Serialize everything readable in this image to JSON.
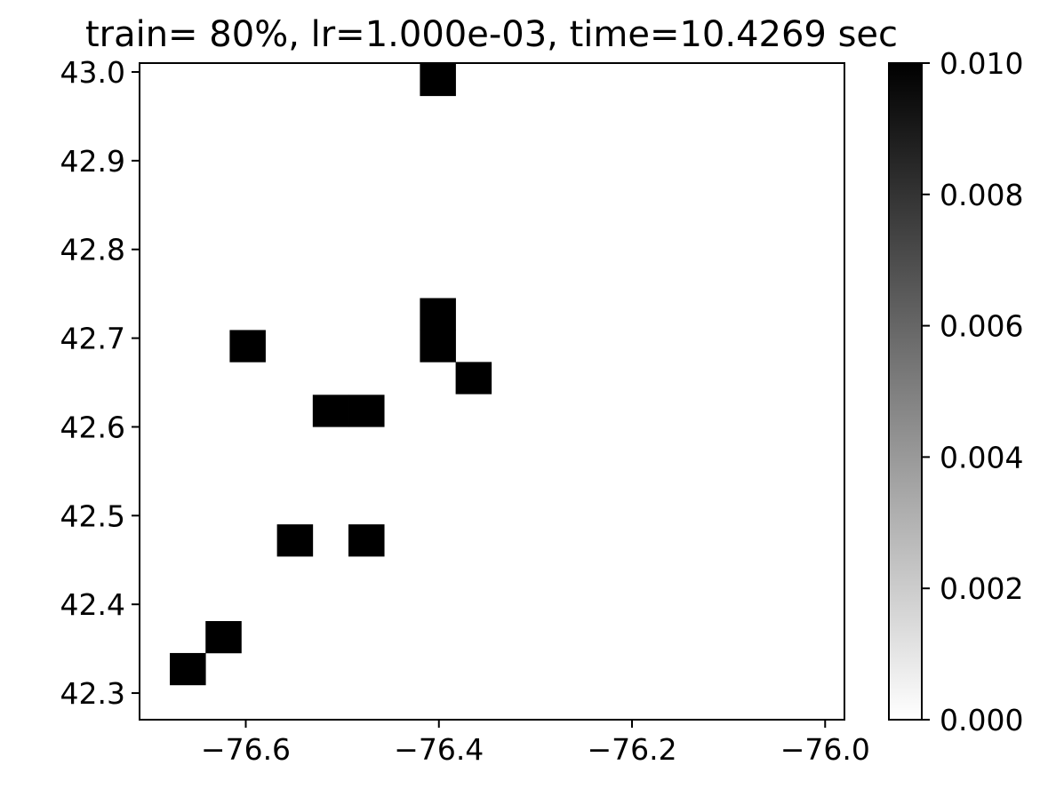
{
  "chart_data": {
    "type": "heatmap",
    "title": "train= 80%, lr=1.000e-03, time=10.4269 sec",
    "xlabel": "",
    "ylabel": "",
    "xlim": [
      -76.71,
      -75.98
    ],
    "ylim": [
      42.27,
      43.01
    ],
    "grid": false,
    "colormap": "gray_r",
    "color_range": [
      0.0,
      0.01
    ],
    "cell_size": [
      0.0373,
      0.0363
    ],
    "x_ticks": [
      -76.6,
      -76.4,
      -76.2,
      -76.0
    ],
    "x_tick_labels": [
      "−76.6",
      "−76.4",
      "−76.2",
      "−76.0"
    ],
    "y_ticks": [
      42.3,
      42.4,
      42.5,
      42.6,
      42.7,
      42.8,
      42.9,
      43.0
    ],
    "y_tick_labels": [
      "42.3",
      "42.4",
      "42.5",
      "42.6",
      "42.7",
      "42.8",
      "42.9",
      "43.0"
    ],
    "colorbar_ticks": [
      0.0,
      0.002,
      0.004,
      0.006,
      0.008,
      0.01
    ],
    "colorbar_tick_labels": [
      "0.000",
      "0.002",
      "0.004",
      "0.006",
      "0.008",
      "0.010"
    ],
    "cells": [
      {
        "x": -76.401,
        "y": 42.991,
        "value": 0.01
      },
      {
        "x": -76.401,
        "y": 42.727,
        "value": 0.01
      },
      {
        "x": -76.401,
        "y": 42.691,
        "value": 0.01
      },
      {
        "x": -76.364,
        "y": 42.655,
        "value": 0.01
      },
      {
        "x": -76.598,
        "y": 42.691,
        "value": 0.01
      },
      {
        "x": -76.512,
        "y": 42.618,
        "value": 0.01
      },
      {
        "x": -76.475,
        "y": 42.618,
        "value": 0.01
      },
      {
        "x": -76.549,
        "y": 42.472,
        "value": 0.01
      },
      {
        "x": -76.475,
        "y": 42.472,
        "value": 0.01
      },
      {
        "x": -76.623,
        "y": 42.363,
        "value": 0.01
      },
      {
        "x": -76.66,
        "y": 42.327,
        "value": 0.01
      }
    ]
  }
}
